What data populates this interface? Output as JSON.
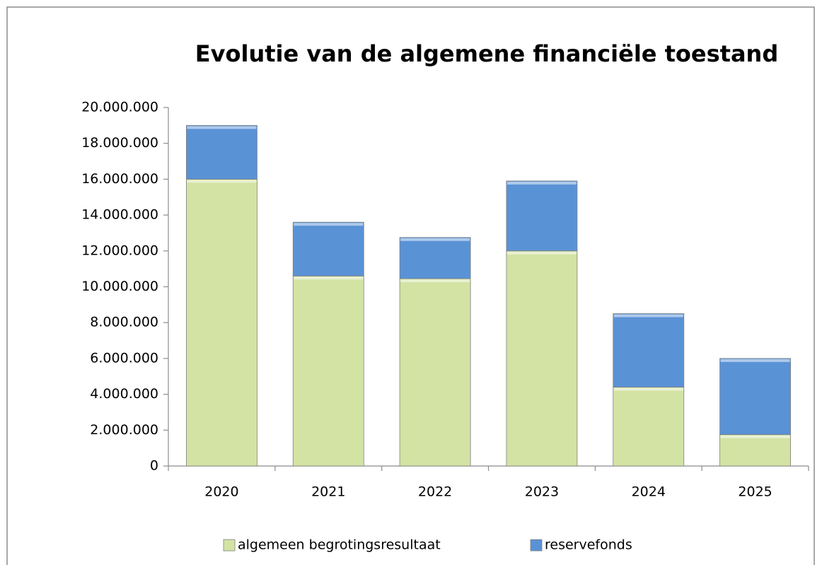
{
  "chart_data": {
    "type": "stacked_bar",
    "title": "Evolutie van de algemene financiële toestand",
    "categories": [
      "2020",
      "2021",
      "2022",
      "2023",
      "2024",
      "2025"
    ],
    "series": [
      {
        "name": "algemeen begrotingsresultaat",
        "color": "#d2e3a3",
        "values": [
          16000000,
          10600000,
          10450000,
          12000000,
          4400000,
          1750000
        ]
      },
      {
        "name": "reservefonds",
        "color": "#5a92d6",
        "values": [
          3000000,
          3000000,
          2300000,
          3900000,
          4100000,
          4250000
        ]
      }
    ],
    "ylim": [
      0,
      20000000
    ],
    "yticks": [
      0,
      {
        "value": 2000000,
        "label": "2.000.000"
      },
      {
        "value": 4000000,
        "label": "4.000.000"
      },
      {
        "value": 6000000,
        "label": "6.000.000"
      },
      {
        "value": 8000000,
        "label": "8.000.000"
      },
      {
        "value": 10000000,
        "label": "10.000.000"
      },
      {
        "value": 12000000,
        "label": "12.000.000"
      },
      {
        "value": 14000000,
        "label": "14.000.000"
      },
      {
        "value": 16000000,
        "label": "16.000.000"
      },
      {
        "value": 18000000,
        "label": "18.000.000"
      },
      {
        "value": 20000000,
        "label": "20.000.000"
      }
    ],
    "grid": false,
    "legend": "bottom"
  }
}
